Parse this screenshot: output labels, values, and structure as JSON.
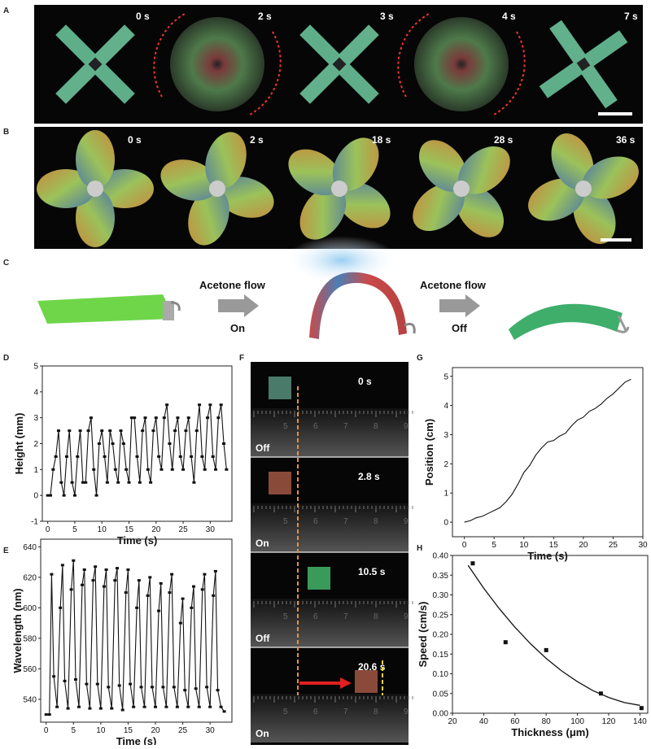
{
  "panels": {
    "A": "A",
    "B": "B",
    "C": "C",
    "D": "D",
    "E": "E",
    "F": "F",
    "G": "G",
    "H": "H"
  },
  "panel_a": {
    "times": [
      "0 s",
      "2 s",
      "3 s",
      "4 s",
      "7 s"
    ],
    "states": [
      "cross",
      "spin",
      "cross",
      "spin",
      "cross"
    ]
  },
  "panel_b": {
    "times": [
      "0 s",
      "2 s",
      "18 s",
      "28 s",
      "36 s"
    ]
  },
  "panel_c": {
    "step1_top": "Acetone flow",
    "step1_bottom": "On",
    "step2_top": "Acetone flow",
    "step2_bottom": "Off",
    "colors": {
      "flat": "#6fd64a",
      "bent_red": "#d9534f",
      "bent_blue": "#4a7fb5",
      "final": "#3fae6b"
    }
  },
  "panel_f": {
    "frames": [
      {
        "time": "0 s",
        "state": "Off"
      },
      {
        "time": "2.8 s",
        "state": "On"
      },
      {
        "time": "10.5 s",
        "state": "Off"
      },
      {
        "time": "20.6 s",
        "state": "On"
      }
    ],
    "ruler": [
      "5",
      "6",
      "7",
      "8",
      "9"
    ]
  },
  "chart_data": [
    {
      "id": "D",
      "type": "line",
      "xlabel": "Time (s)",
      "ylabel": "Height (mm)",
      "xlim": [
        -1,
        34
      ],
      "ylim": [
        -1,
        5
      ],
      "xticks": [
        "0",
        "5",
        "10",
        "15",
        "20",
        "25",
        "30"
      ],
      "yticks": [
        "-1",
        "0",
        "1",
        "2",
        "3",
        "4",
        "5"
      ],
      "x": [
        0,
        0.5,
        1,
        1.5,
        2,
        2.5,
        3,
        3.5,
        4,
        4.5,
        5,
        5.5,
        6,
        6.5,
        7,
        7.5,
        8,
        8.5,
        9,
        9.5,
        10,
        10.5,
        11,
        11.5,
        12,
        12.5,
        13,
        13.5,
        14,
        14.5,
        15,
        15.5,
        16,
        16.5,
        17,
        17.5,
        18,
        18.5,
        19,
        19.5,
        20,
        20.5,
        21,
        21.5,
        22,
        22.5,
        23,
        23.5,
        24,
        24.5,
        25,
        25.5,
        26,
        26.5,
        27,
        27.5,
        28,
        28.5,
        29,
        29.5,
        30,
        30.5,
        31,
        31.5,
        32,
        32.5,
        33
      ],
      "y": [
        0,
        0,
        1,
        1.5,
        2.5,
        0.5,
        0,
        1.5,
        2.5,
        0.5,
        0,
        1.5,
        2.5,
        0.5,
        0.5,
        2.5,
        3,
        1,
        0,
        2,
        2.5,
        1.5,
        0.5,
        2.5,
        2,
        1,
        0.5,
        2.5,
        2,
        1,
        0.5,
        3,
        3,
        1.5,
        0.5,
        2.5,
        3,
        1,
        0.5,
        2.5,
        3,
        1.5,
        1,
        3,
        3.5,
        2,
        1,
        2.5,
        3,
        1.5,
        1,
        2.5,
        3,
        1.5,
        0.5,
        2.5,
        3.5,
        1.5,
        1,
        3,
        3.5,
        1.5,
        1,
        3,
        3.5,
        2,
        1
      ]
    },
    {
      "id": "E",
      "type": "line",
      "xlabel": "Time (s)",
      "ylabel": "Wavelength (nm)",
      "xlim": [
        -1,
        34
      ],
      "ylim": [
        525,
        645
      ],
      "xticks": [
        "0",
        "5",
        "10",
        "15",
        "20",
        "25",
        "30"
      ],
      "yticks": [
        "540",
        "560",
        "580",
        "600",
        "620",
        "640"
      ],
      "x": [
        0,
        0.6,
        1,
        1.4,
        2,
        2.6,
        3,
        3.4,
        4,
        4.6,
        5,
        5.4,
        6,
        6.6,
        7,
        7.4,
        8,
        8.6,
        9,
        9.4,
        10,
        10.6,
        11,
        11.4,
        12,
        12.6,
        13,
        13.4,
        14,
        14.6,
        15,
        15.4,
        16,
        16.6,
        17,
        17.4,
        18,
        18.6,
        19,
        19.4,
        20,
        20.6,
        21,
        21.4,
        22,
        22.6,
        23,
        23.4,
        24,
        24.6,
        25,
        25.4,
        26,
        26.6,
        27,
        27.4,
        28,
        28.6,
        29,
        29.4,
        30,
        30.6,
        31,
        31.4,
        32,
        32.6
      ],
      "y": [
        530,
        530,
        622,
        555,
        535,
        600,
        628,
        552,
        534,
        612,
        631,
        553,
        535,
        615,
        625,
        550,
        534,
        618,
        627,
        550,
        534,
        614,
        625,
        548,
        534,
        618,
        626,
        549,
        533,
        610,
        625,
        550,
        535,
        600,
        618,
        548,
        535,
        608,
        620,
        548,
        535,
        598,
        616,
        548,
        535,
        610,
        622,
        548,
        535,
        590,
        606,
        546,
        535,
        600,
        614,
        547,
        535,
        612,
        622,
        548,
        535,
        608,
        624,
        546,
        535,
        532
      ]
    },
    {
      "id": "G",
      "type": "line",
      "xlabel": "Time (s)",
      "ylabel": "Position (cm)",
      "xlim": [
        -2,
        30
      ],
      "ylim": [
        -0.5,
        5.3
      ],
      "xticks": [
        "0",
        "5",
        "10",
        "15",
        "20",
        "25",
        "30"
      ],
      "yticks": [
        "0",
        "1",
        "2",
        "3",
        "4",
        "5"
      ],
      "x": [
        0,
        1,
        2,
        3,
        4,
        5,
        6,
        7,
        8,
        9,
        10,
        11,
        12,
        13,
        14,
        15,
        16,
        17,
        18,
        19,
        20,
        21,
        22,
        23,
        24,
        25,
        26,
        27,
        28
      ],
      "y": [
        0,
        0.05,
        0.15,
        0.2,
        0.3,
        0.4,
        0.5,
        0.7,
        0.95,
        1.3,
        1.7,
        1.95,
        2.3,
        2.55,
        2.75,
        2.8,
        2.95,
        3.05,
        3.3,
        3.5,
        3.6,
        3.8,
        3.9,
        4.05,
        4.25,
        4.4,
        4.6,
        4.8,
        4.9
      ]
    },
    {
      "id": "H",
      "type": "scatter",
      "xlabel": "Thickness (μm)",
      "ylabel": "Speed (cm/s)",
      "xlim": [
        20,
        145
      ],
      "ylim": [
        0,
        0.4
      ],
      "xticks": [
        "20",
        "40",
        "60",
        "80",
        "100",
        "120",
        "140"
      ],
      "yticks": [
        "0.00",
        "0.05",
        "0.10",
        "0.15",
        "0.20",
        "0.25",
        "0.30",
        "0.35",
        "0.40"
      ],
      "x": [
        33,
        54,
        80,
        115,
        141
      ],
      "y": [
        0.38,
        0.18,
        0.16,
        0.05,
        0.013
      ],
      "fit": {
        "x": [
          30,
          40,
          50,
          60,
          70,
          80,
          90,
          100,
          110,
          120,
          130,
          140
        ],
        "y": [
          0.375,
          0.317,
          0.265,
          0.218,
          0.176,
          0.139,
          0.107,
          0.08,
          0.057,
          0.04,
          0.027,
          0.02
        ]
      }
    }
  ]
}
